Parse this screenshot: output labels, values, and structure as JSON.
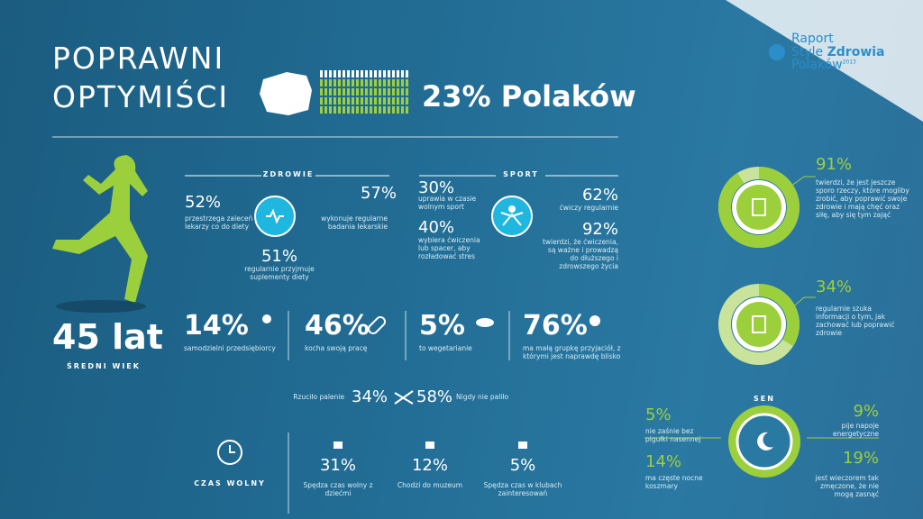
{
  "header": {
    "title_lines": [
      "POPRAWNI",
      "OPTYMIŚCI"
    ],
    "share": "23% Polaków"
  },
  "logo": {
    "line1": "Raport",
    "line2_a": "Style ",
    "line2_b": "Zdrowia",
    "line3": "Polaków",
    "year": "2013"
  },
  "zdrowie": {
    "heading": "ZDROWIE",
    "items": [
      {
        "value": "52%",
        "text": "przestrzega zaleceń lekarzy co do diety"
      },
      {
        "value": "57%",
        "text": "wykonuje regularne badania lekarskie"
      },
      {
        "value": "51%",
        "text": "regularnie przyjmuje suplementy diety"
      }
    ]
  },
  "sport": {
    "heading": "SPORT",
    "items": [
      {
        "value": "30%",
        "text": "uprawia w czasie wolnym sport"
      },
      {
        "value": "40%",
        "text": "wybiera ćwiczenia lub spacer, aby rozładować stres"
      },
      {
        "value": "62%",
        "text": "ćwiczy regularnie"
      },
      {
        "value": "92%",
        "text": "twierdzi, że ćwiczenia, są ważne i prowadzą do dłuższego i zdrowszego życia"
      }
    ]
  },
  "age": {
    "value": "45 lat",
    "label": "ŚREDNI WIEK"
  },
  "facts": [
    {
      "value": "14%",
      "text": "samodzielni przedsiębiorcy"
    },
    {
      "value": "46%",
      "text": "kocha swoją pracę"
    },
    {
      "value": "5%",
      "text": "to wegetarianie"
    },
    {
      "value": "76%",
      "text": "ma małą grupkę przyjaciół, z którymi jest naprawdę blisko"
    }
  ],
  "smoking": {
    "quit_label": "Rzuciło palenie",
    "quit_value": "34%",
    "never_value": "58%",
    "never_label": "Nigdy nie paliło"
  },
  "leisure": {
    "heading": "CZAS WOLNY",
    "items": [
      {
        "value": "31%",
        "text": "Spędza czas wolny z dziećmi"
      },
      {
        "value": "12%",
        "text": "Chodzi do muzeum"
      },
      {
        "value": "5%",
        "text": "Spędza czas w klubach zainteresowań"
      }
    ]
  },
  "donuts": [
    {
      "percent": {
        "value": 91,
        "label": "91%"
      },
      "text": "twierdzi, że jest jeszcze sporo rzeczy, które mogliby zrobić, aby poprawić swoje zdrowie i mają chęć oraz siłę, aby się tym zająć"
    },
    {
      "percent": {
        "value": 34,
        "label": "34%"
      },
      "text": "regularnie szuka informacji o tym, jak zachować lub poprawić zdrowie"
    }
  ],
  "sleep": {
    "heading": "SEN",
    "items": [
      {
        "value": "5%",
        "text": "nie zaśnie bez pigułki nasennej"
      },
      {
        "value": "9%",
        "text": "pije napoje energetyczne"
      },
      {
        "value": "14%",
        "text": "ma częste nocne koszmary"
      },
      {
        "value": "19%",
        "text": "jest wieczorem tak zmęczone, że nie mogą zasnąć"
      }
    ]
  }
}
